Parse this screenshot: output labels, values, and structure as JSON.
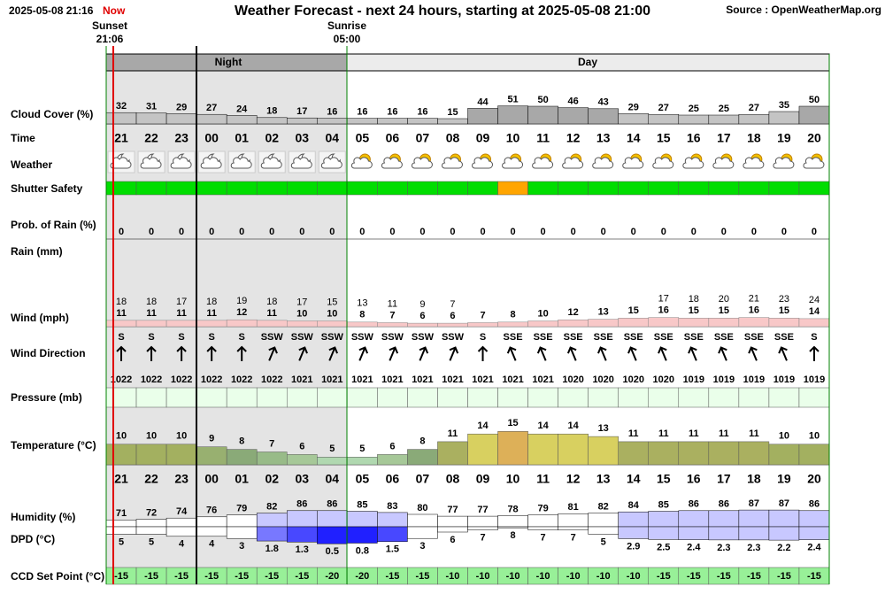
{
  "header": {
    "timestamp": "2025-05-08 21:16",
    "now": "Now",
    "title": "Weather Forecast - next 24 hours, starting at 2025-05-08 21:00",
    "source": "Source : OpenWeatherMap.org"
  },
  "sun": {
    "sunset": "Sunset",
    "sunset_time": "21:06",
    "sunrise": "Sunrise",
    "sunrise_time": "05:00"
  },
  "periods": {
    "night": "Night",
    "day": "Day"
  },
  "labels": {
    "cloud": "Cloud Cover (%)",
    "time": "Time",
    "weather": "Weather",
    "shutter": "Shutter Safety",
    "rain_prob": "Prob. of Rain (%)",
    "rain": "Rain (mm)",
    "wind": "Wind (mph)",
    "wind_dir": "Wind Direction",
    "pressure": "Pressure (mb)",
    "temperature": "Temperature (°C)",
    "humidity": "Humidity (%)",
    "dpd": "DPD (°C)",
    "ccd": "CCD Set Point (°C)"
  },
  "hours": [
    "21",
    "22",
    "23",
    "00",
    "01",
    "02",
    "03",
    "04",
    "05",
    "06",
    "07",
    "08",
    "09",
    "10",
    "11",
    "12",
    "13",
    "14",
    "15",
    "16",
    "17",
    "18",
    "19",
    "20"
  ],
  "cloud_cover": [
    32,
    31,
    29,
    27,
    24,
    18,
    17,
    16,
    16,
    16,
    16,
    15,
    44,
    51,
    50,
    46,
    43,
    29,
    27,
    25,
    25,
    27,
    35,
    50
  ],
  "shutter_colors": [
    "#00dd00",
    "#00dd00",
    "#00dd00",
    "#00dd00",
    "#00dd00",
    "#00dd00",
    "#00dd00",
    "#00dd00",
    "#00dd00",
    "#00dd00",
    "#00dd00",
    "#00dd00",
    "#00dd00",
    "#ffa500",
    "#00dd00",
    "#00dd00",
    "#00dd00",
    "#00dd00",
    "#00dd00",
    "#00dd00",
    "#00dd00",
    "#00dd00",
    "#00dd00",
    "#00dd00"
  ],
  "rain_prob": [
    0,
    0,
    0,
    0,
    0,
    0,
    0,
    0,
    0,
    0,
    0,
    0,
    0,
    0,
    0,
    0,
    0,
    0,
    0,
    0,
    0,
    0,
    0,
    0
  ],
  "wind_gust": [
    18,
    18,
    17,
    18,
    19,
    18,
    17,
    15,
    13,
    11,
    9,
    7,
    null,
    null,
    null,
    null,
    null,
    null,
    17,
    18,
    20,
    21,
    23,
    24
  ],
  "wind": [
    11,
    11,
    11,
    11,
    12,
    11,
    10,
    10,
    8,
    7,
    6,
    6,
    7,
    8,
    10,
    12,
    13,
    15,
    16,
    15,
    15,
    16,
    15,
    14
  ],
  "wind_dir": [
    "S",
    "S",
    "S",
    "S",
    "S",
    "SSW",
    "SSW",
    "SSW",
    "SSW",
    "SSW",
    "SSW",
    "SSW",
    "S",
    "SSE",
    "SSE",
    "SSE",
    "SSE",
    "SSE",
    "SSE",
    "SSE",
    "SSE",
    "SSE",
    "SSE",
    "S"
  ],
  "pressure": [
    1022,
    1022,
    1022,
    1022,
    1022,
    1022,
    1021,
    1021,
    1021,
    1021,
    1021,
    1021,
    1021,
    1021,
    1021,
    1020,
    1020,
    1020,
    1020,
    1019,
    1019,
    1019,
    1019,
    1019
  ],
  "temperature": [
    10,
    10,
    10,
    9,
    8,
    7,
    6,
    5,
    5,
    6,
    8,
    11,
    14,
    15,
    14,
    14,
    13,
    11,
    11,
    11,
    11,
    11,
    10,
    10
  ],
  "temperature_colors": [
    "#a3b060",
    "#a3b060",
    "#a3b060",
    "#98b070",
    "#8aaa78",
    "#98bb88",
    "#a6c898",
    "#b0d8b0",
    "#b0d8b0",
    "#a6c898",
    "#8aaa78",
    "#aab060",
    "#d8d060",
    "#ddb058",
    "#d8d060",
    "#d8d060",
    "#d8d060",
    "#aab060",
    "#aab060",
    "#aab060",
    "#aab060",
    "#aab060",
    "#a3b060",
    "#a3b060"
  ],
  "humidity": [
    71,
    72,
    74,
    76,
    79,
    82,
    86,
    86,
    85,
    83,
    80,
    77,
    77,
    78,
    79,
    81,
    82,
    84,
    85,
    86,
    86,
    87,
    87,
    86
  ],
  "dpd": [
    5,
    5,
    4,
    4,
    3,
    1.8,
    1.3,
    0.5,
    0.8,
    1.5,
    3,
    6,
    7,
    8,
    7,
    7,
    5,
    2.9,
    2.5,
    2.4,
    2.3,
    2.3,
    2.2,
    2.4
  ],
  "ccd": [
    -15,
    -15,
    -15,
    -15,
    -15,
    -15,
    -15,
    -20,
    -20,
    -15,
    -15,
    -10,
    -10,
    -10,
    -10,
    -10,
    -10,
    -10,
    -15,
    -15,
    -15,
    -15,
    -15,
    -15
  ]
}
